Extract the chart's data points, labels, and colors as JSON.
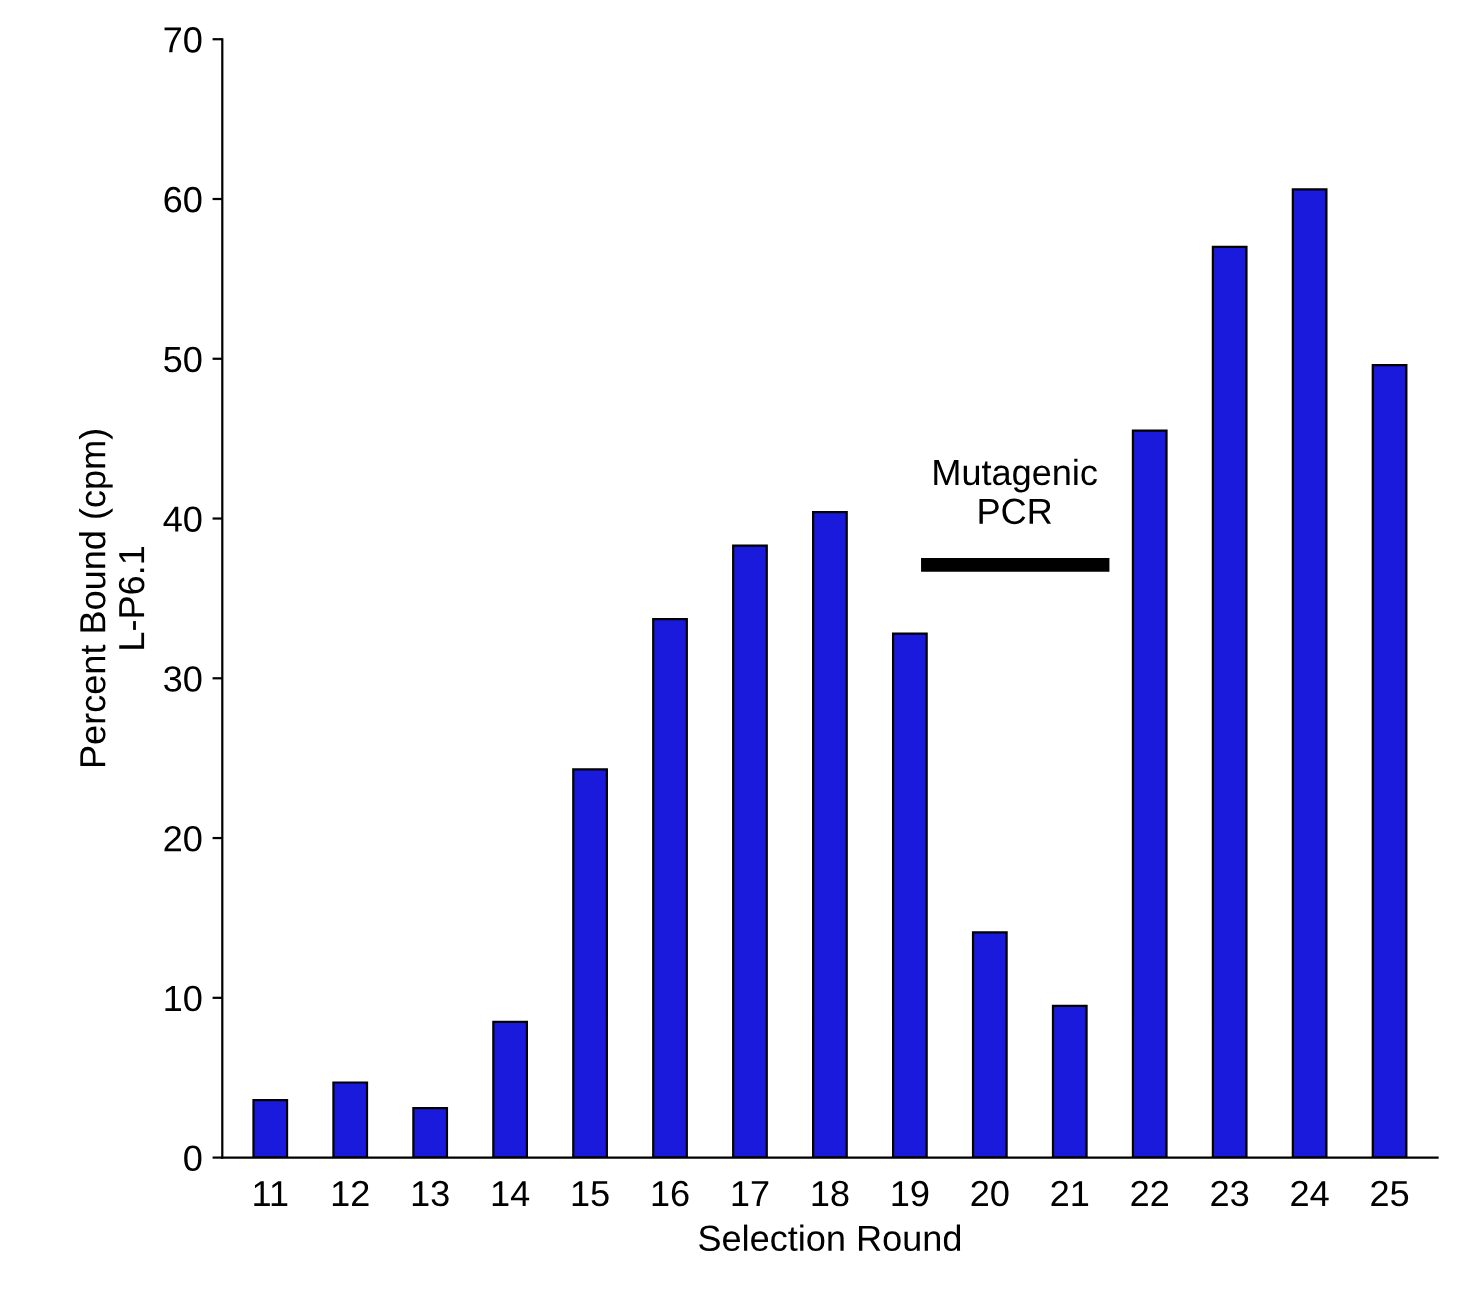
{
  "chart_data": {
    "type": "bar",
    "xlabel": "Selection Round",
    "ylabel": "Percent Bound (cpm)\nL-P6.1",
    "categories": [
      "11",
      "12",
      "13",
      "14",
      "15",
      "16",
      "17",
      "18",
      "19",
      "20",
      "21",
      "22",
      "23",
      "24",
      "25"
    ],
    "values": [
      3.6,
      4.7,
      3.1,
      8.5,
      24.3,
      33.7,
      38.3,
      40.4,
      32.8,
      14.1,
      9.5,
      45.5,
      57.0,
      60.6,
      49.6
    ],
    "color": "#1a1adc",
    "ylim": [
      0,
      70
    ],
    "yticks": [
      0,
      10,
      20,
      30,
      40,
      50,
      60,
      70
    ],
    "grid": false,
    "annotations": [
      "Mutagenic\nPCR"
    ]
  }
}
